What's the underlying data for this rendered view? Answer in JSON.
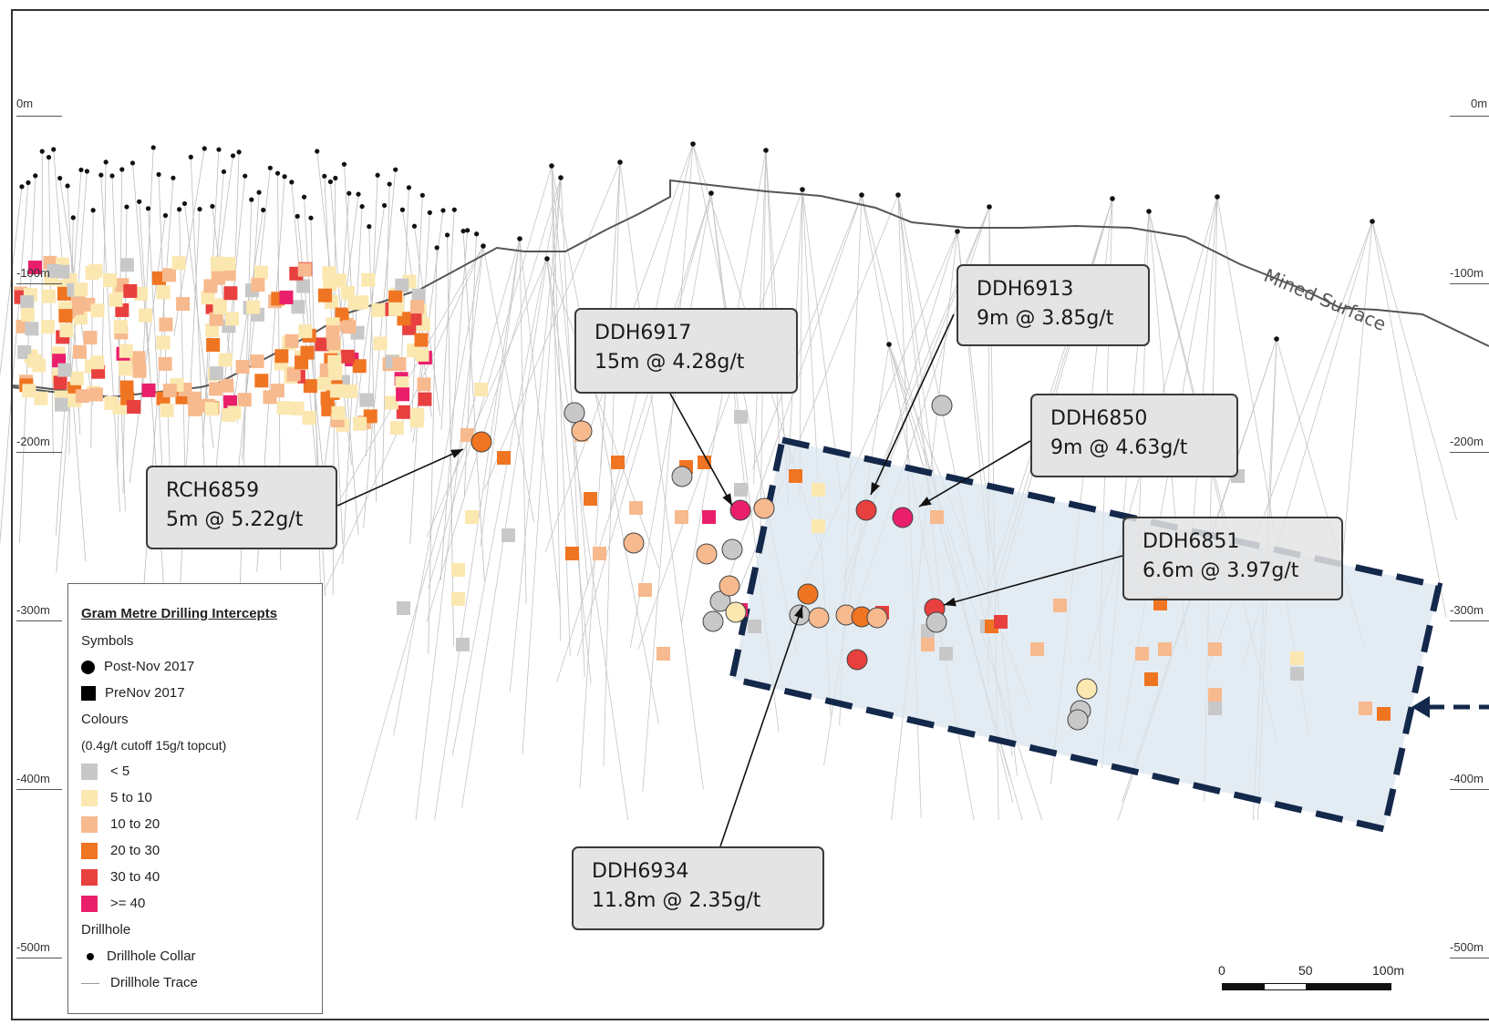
{
  "depth_labels": {
    "left": [
      "0m",
      "-100m",
      "-200m",
      "-300m",
      "-400m",
      "-500m"
    ],
    "right": [
      "0m",
      "-100m",
      "-200m",
      "-300m",
      "-400m",
      "-500m"
    ]
  },
  "surface_label": "Mined Surface",
  "callouts": [
    {
      "hole": "DDH6917",
      "intercept": "15m @ 4.28g/t"
    },
    {
      "hole": "DDH6913",
      "intercept": "9m @ 3.85g/t"
    },
    {
      "hole": "DDH6850",
      "intercept": "9m @ 4.63g/t"
    },
    {
      "hole": "DDH6851",
      "intercept": "6.6m @ 3.97g/t"
    },
    {
      "hole": "RCH6859",
      "intercept": "5m @ 5.22g/t"
    },
    {
      "hole": "DDH6934",
      "intercept": "11.8m @ 2.35g/t"
    }
  ],
  "legend": {
    "title": "Gram Metre Drilling Intercepts",
    "symbols_heading": "Symbols",
    "symbols": [
      {
        "label": "Post-Nov 2017",
        "icon": "circle-icon"
      },
      {
        "label": "PreNov 2017",
        "icon": "square-icon"
      }
    ],
    "colours_heading": "Colours",
    "colours_note": "(0.4g/t cutoff 15g/t topcut)",
    "colour_classes": [
      {
        "label": "< 5",
        "color": "#c8c8c8"
      },
      {
        "label": "5 to 10",
        "color": "#fbe7b0"
      },
      {
        "label": "10 to 20",
        "color": "#f7b98e"
      },
      {
        "label": "20 to 30",
        "color": "#f07522"
      },
      {
        "label": "30 to 40",
        "color": "#e8403f"
      },
      {
        "label": ">= 40",
        "color": "#ea1f6b"
      }
    ],
    "drillhole_heading": "Drillhole",
    "drillhole_items": [
      {
        "label": "Drillhole Collar",
        "icon": "collar-dot-icon"
      },
      {
        "label": "Drillhole Trace",
        "icon": "trace-line-icon"
      }
    ]
  },
  "scale_bar": {
    "labels": [
      "0",
      "50",
      "100m"
    ]
  },
  "colors": {
    "target_zone_fill": "#dbe6ef",
    "target_zone_border": "#13284a",
    "callout_fill": "#e4e4e4"
  }
}
